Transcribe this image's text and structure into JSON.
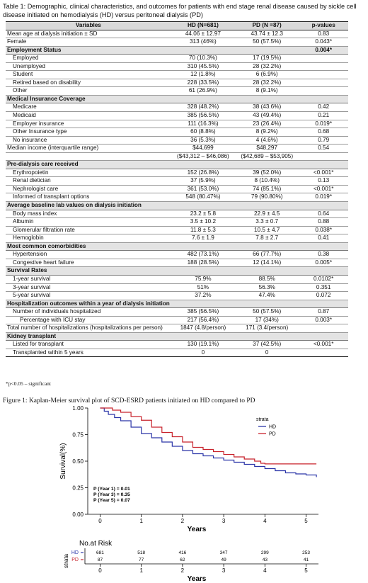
{
  "table": {
    "caption": "Table 1: Demographic, clinical characteristics, and outcomes for patients with end stage renal disease caused by sickle cell disease initiated on hemodialysis (HD) versus peritoneal dialysis (PD)",
    "headers": [
      "Variables",
      "HD (N=681)",
      "PD (N =87)",
      "p-values"
    ],
    "rows": [
      {
        "type": "row",
        "indent": 0,
        "cells": [
          "Mean age at dialysis initiation ± SD",
          "44.06 ± 12.97",
          "43.74 ± 12.3",
          "0.83"
        ]
      },
      {
        "type": "row",
        "indent": 0,
        "cells": [
          "Female",
          "313 (46%)",
          "50 (57.5%)",
          "0.043*"
        ]
      },
      {
        "type": "section",
        "cells": [
          "Employment Status",
          "",
          "",
          "0.004*"
        ]
      },
      {
        "type": "row",
        "indent": 1,
        "cells": [
          "Employed",
          "70 (10.3%)",
          "17 (19.5%)",
          ""
        ]
      },
      {
        "type": "row",
        "indent": 1,
        "cells": [
          "Unemployed",
          "310 (45.5%)",
          "28 (32.2%)",
          ""
        ]
      },
      {
        "type": "row",
        "indent": 1,
        "cells": [
          "Student",
          "12 (1.8%)",
          "6 (6.9%)",
          ""
        ]
      },
      {
        "type": "row",
        "indent": 1,
        "cells": [
          "Retired based on disability",
          "228 (33.5%)",
          "28 (32.2%)",
          ""
        ]
      },
      {
        "type": "row",
        "indent": 1,
        "cells": [
          "Other",
          "61 (26.9%)",
          "8 (9.1%)",
          ""
        ]
      },
      {
        "type": "section",
        "cells": [
          "Medical Insurance Coverage",
          "",
          "",
          ""
        ]
      },
      {
        "type": "row",
        "indent": 1,
        "cells": [
          "Medicare",
          "328 (48.2%)",
          "38 (43.6%)",
          "0.42"
        ]
      },
      {
        "type": "row",
        "indent": 1,
        "cells": [
          "Medicaid",
          "385 (56.5%)",
          "43 (49.4%)",
          "0.21"
        ]
      },
      {
        "type": "row",
        "indent": 1,
        "cells": [
          "Employer insurance",
          "111 (16.3%)",
          "23 (26.4%)",
          "0.019*"
        ]
      },
      {
        "type": "row",
        "indent": 1,
        "cells": [
          "Other Insurance type",
          "60 (8.8%)",
          "8 (9.2%)",
          "0.68"
        ]
      },
      {
        "type": "row",
        "indent": 1,
        "cells": [
          "No insurance",
          "36 (5.3%)",
          "4 (4.6%)",
          "0.79"
        ]
      },
      {
        "type": "row",
        "indent": 0,
        "cells": [
          "Median income (interquartile range)",
          "$44,699",
          "$48,297",
          "0.54"
        ]
      },
      {
        "type": "row",
        "indent": 0,
        "cells": [
          "",
          "($43,312 – $46,086)",
          "($42,689 – $53,905)",
          ""
        ]
      },
      {
        "type": "section",
        "cells": [
          "Pre-dialysis care received",
          "",
          "",
          ""
        ]
      },
      {
        "type": "row",
        "indent": 1,
        "cells": [
          "Erythropoietin",
          "152 (26.8%)",
          "39 (52.0%)",
          "<0.001*"
        ]
      },
      {
        "type": "row",
        "indent": 1,
        "cells": [
          "Renal dietician",
          "37 (5.9%)",
          "8 (10.4%)",
          "0.13"
        ]
      },
      {
        "type": "row",
        "indent": 1,
        "cells": [
          "Nephrologist care",
          "361 (53.0%)",
          "74 (85.1%)",
          "<0.001*"
        ]
      },
      {
        "type": "row",
        "indent": 1,
        "cells": [
          "Informed of transplant options",
          "548 (80.47%)",
          "79 (90.80%)",
          "0.019*"
        ]
      },
      {
        "type": "section",
        "cells": [
          "Average baseline lab values on dialysis initiation",
          "",
          "",
          ""
        ]
      },
      {
        "type": "row",
        "indent": 1,
        "cells": [
          "Body mass index",
          "23.2 ± 5.8",
          "22.9 ± 4.5",
          "0.64"
        ]
      },
      {
        "type": "row",
        "indent": 1,
        "cells": [
          "Albumin",
          "3.5 ± 10.2",
          "3.3 ± 0.7",
          "0.88"
        ]
      },
      {
        "type": "row",
        "indent": 1,
        "cells": [
          "Glomerular filtration rate",
          "11.8 ± 5.3",
          "10.5 ± 4.7",
          "0.038*"
        ]
      },
      {
        "type": "row",
        "indent": 1,
        "cells": [
          "Hemoglobin",
          "7.6 ± 1.9",
          "7.8 ± 2.7",
          "0.41"
        ]
      },
      {
        "type": "section",
        "cells": [
          "Most common comorbidities",
          "",
          "",
          ""
        ]
      },
      {
        "type": "row",
        "indent": 1,
        "cells": [
          "Hypertension",
          "482 (73.1%)",
          "66 (77.7%)",
          "0.38"
        ]
      },
      {
        "type": "row",
        "indent": 1,
        "cells": [
          "Congestive heart failure",
          "188 (28.5%)",
          "12 (14.1%)",
          "0.005*"
        ]
      },
      {
        "type": "section",
        "cells": [
          "Survival Rates",
          "",
          "",
          ""
        ]
      },
      {
        "type": "row",
        "indent": 1,
        "cells": [
          "1-year survival",
          "75.9%",
          "88.5%",
          "0.0102*"
        ]
      },
      {
        "type": "row",
        "indent": 1,
        "cells": [
          "3-year survival",
          "51%",
          "56.3%",
          "0.351"
        ]
      },
      {
        "type": "row",
        "indent": 1,
        "cells": [
          "5-year survival",
          "37.2%",
          "47.4%",
          "0.072"
        ]
      },
      {
        "type": "section",
        "cells": [
          "Hospitalization outcomes within a year of dialysis initiation",
          "",
          "",
          ""
        ]
      },
      {
        "type": "row",
        "indent": 1,
        "cells": [
          "Number of individuals hospitalized",
          "385 (56.5%)",
          "50 (57.5%)",
          "0.87"
        ]
      },
      {
        "type": "row",
        "indent": 2,
        "cells": [
          "Percentage with ICU stay",
          "217 (56.4%)",
          "17 (34%)",
          "0.003*"
        ]
      },
      {
        "type": "row",
        "indent": 0,
        "cells": [
          "Total number of hospitalizations (hospitalizations per person)",
          "1847 (4.8/person)",
          "171 (3.4/person)",
          ""
        ]
      },
      {
        "type": "section",
        "cells": [
          "Kidney transplant",
          "",
          "",
          ""
        ]
      },
      {
        "type": "row",
        "indent": 1,
        "cells": [
          "Listed for transplant",
          "130 (19.1%)",
          "37 (42.5%)",
          "<0.001*"
        ]
      },
      {
        "type": "row",
        "indent": 1,
        "cells": [
          "Transplanted within 5 years",
          "0",
          "0",
          ""
        ]
      }
    ],
    "footnote": "*p<0.05 – significant"
  },
  "figure": {
    "caption": "Figure 1: Kaplan-Meier survival plot of SCD-ESRD patients initiated on HD compared to PD"
  },
  "chart_data": {
    "type": "line",
    "title": "",
    "xlabel": "Years",
    "ylabel": "Survival(%)",
    "xlim": [
      -0.3,
      5.3
    ],
    "ylim": [
      0,
      1.0
    ],
    "xticks": [
      0,
      1,
      2,
      3,
      4,
      5
    ],
    "yticks": [
      0.0,
      0.25,
      0.5,
      0.75,
      1.0
    ],
    "ytick_labels": [
      "0.00",
      "0.25",
      "0.50",
      "0.75",
      "1.00"
    ],
    "legend_title": "strata",
    "legend_position": "top-right",
    "annotations": [
      "P (Year 1) = 0.01",
      "P (Year 3) = 0.35",
      "P (Year 5) = 0.07"
    ],
    "series": [
      {
        "name": "HD",
        "color": "#2b35a8",
        "x": [
          0,
          0.1,
          0.2,
          0.35,
          0.5,
          0.75,
          1.0,
          1.25,
          1.5,
          1.75,
          2.0,
          2.25,
          2.5,
          2.75,
          3.0,
          3.25,
          3.5,
          3.75,
          4.0,
          4.25,
          4.5,
          4.75,
          5.0,
          5.25
        ],
        "y": [
          1.0,
          0.97,
          0.94,
          0.91,
          0.88,
          0.82,
          0.76,
          0.72,
          0.68,
          0.64,
          0.6,
          0.57,
          0.55,
          0.53,
          0.51,
          0.49,
          0.47,
          0.45,
          0.43,
          0.41,
          0.39,
          0.38,
          0.37,
          0.35
        ]
      },
      {
        "name": "PD",
        "color": "#c8232c",
        "x": [
          0,
          0.3,
          0.5,
          0.75,
          1.0,
          1.25,
          1.5,
          1.75,
          2.0,
          2.25,
          2.5,
          2.75,
          3.0,
          3.25,
          3.5,
          3.75,
          3.9,
          4.0,
          4.5,
          5.0,
          5.25
        ],
        "y": [
          1.0,
          0.98,
          0.96,
          0.92,
          0.885,
          0.82,
          0.77,
          0.73,
          0.68,
          0.63,
          0.61,
          0.59,
          0.563,
          0.54,
          0.52,
          0.5,
          0.48,
          0.474,
          0.474,
          0.474,
          0.474
        ]
      }
    ],
    "risk_table": {
      "title": "No.at Risk",
      "ylabel": "strata",
      "times": [
        0,
        1,
        2,
        3,
        4,
        5
      ],
      "xlabel": "Years",
      "rows": [
        {
          "name": "HD",
          "values": [
            "681",
            "518",
            "416",
            "347",
            "299",
            "253"
          ]
        },
        {
          "name": "PD",
          "values": [
            "87",
            "77",
            "62",
            "49",
            "43",
            "41"
          ]
        }
      ]
    }
  }
}
